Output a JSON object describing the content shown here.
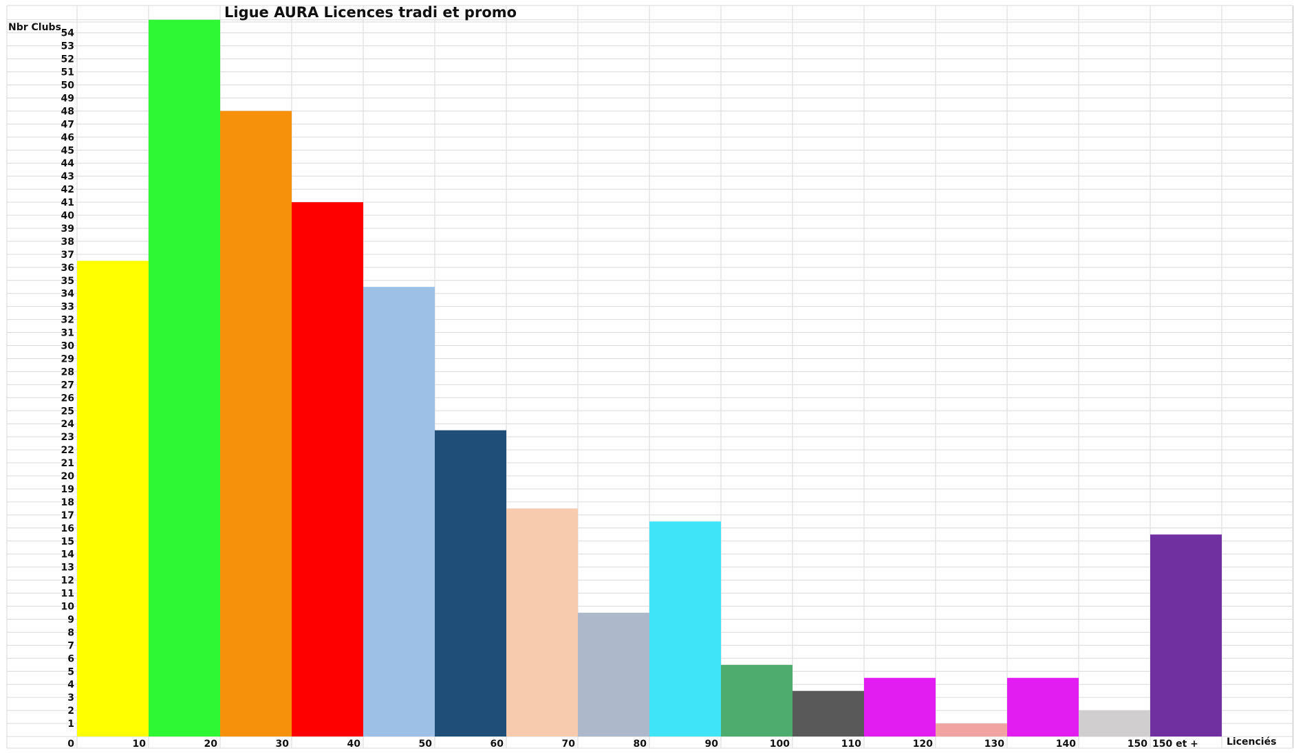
{
  "chart_data": {
    "type": "bar",
    "title": "Ligue AURA Licences tradi et promo",
    "ylabel": "Nbr Clubs",
    "xlabel": "Licenciés",
    "x_ticks": [
      "0",
      "10",
      "20",
      "30",
      "40",
      "50",
      "60",
      "70",
      "80",
      "90",
      "100",
      "110",
      "120",
      "130",
      "140",
      "150",
      "150 et +"
    ],
    "y_ticks": [
      1,
      2,
      3,
      4,
      5,
      6,
      7,
      8,
      9,
      10,
      11,
      12,
      13,
      14,
      15,
      16,
      17,
      18,
      19,
      20,
      21,
      22,
      23,
      24,
      25,
      26,
      27,
      28,
      29,
      30,
      31,
      32,
      33,
      34,
      35,
      36,
      37,
      38,
      39,
      40,
      41,
      42,
      43,
      44,
      45,
      46,
      47,
      48,
      49,
      50,
      51,
      52,
      53,
      54
    ],
    "ylim": [
      0,
      55
    ],
    "grid": true,
    "bars": [
      {
        "from": 0,
        "to": 10,
        "value": 36.5,
        "color": "#FFFF00"
      },
      {
        "from": 10,
        "to": 20,
        "value": 55,
        "color": "#2EF734"
      },
      {
        "from": 20,
        "to": 30,
        "value": 48,
        "color": "#F6910C"
      },
      {
        "from": 30,
        "to": 40,
        "value": 41,
        "color": "#FF0000"
      },
      {
        "from": 40,
        "to": 50,
        "value": 34.5,
        "color": "#9DC1E6"
      },
      {
        "from": 50,
        "to": 60,
        "value": 23.5,
        "color": "#1F4E79"
      },
      {
        "from": 60,
        "to": 70,
        "value": 17.5,
        "color": "#F6CBAE"
      },
      {
        "from": 70,
        "to": 80,
        "value": 9.5,
        "color": "#ADB9CA"
      },
      {
        "from": 80,
        "to": 90,
        "value": 16.5,
        "color": "#3FE4F8"
      },
      {
        "from": 90,
        "to": 100,
        "value": 5.5,
        "color": "#4FAC6F"
      },
      {
        "from": 100,
        "to": 110,
        "value": 3.5,
        "color": "#595959"
      },
      {
        "from": 110,
        "to": 120,
        "value": 4.5,
        "color": "#E21DF2"
      },
      {
        "from": 120,
        "to": 130,
        "value": 1,
        "color": "#F1A3A1"
      },
      {
        "from": 130,
        "to": 140,
        "value": 4.5,
        "color": "#E21DF2"
      },
      {
        "from": 140,
        "to": 150,
        "value": 2,
        "color": "#D0CECE"
      },
      {
        "from": 150,
        "to": 160,
        "value": 15.5,
        "color": "#7030A0"
      }
    ]
  }
}
